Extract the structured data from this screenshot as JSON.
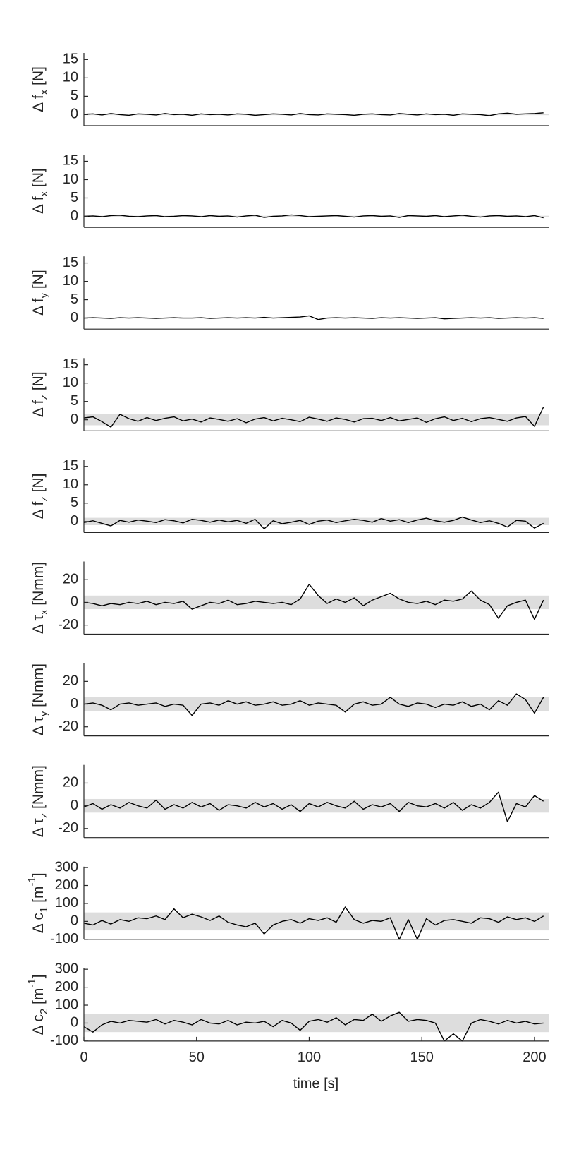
{
  "chart_data": {
    "type": "line",
    "xlabel": "time [s]",
    "xlim": [
      0,
      206.6
    ],
    "xticks": [
      0,
      50,
      100,
      150,
      200
    ],
    "line_color": "#000000",
    "band_color": "#dddddd",
    "x": [
      0,
      4,
      8,
      12,
      16,
      20,
      24,
      28,
      32,
      36,
      40,
      44,
      48,
      52,
      56,
      60,
      64,
      68,
      72,
      76,
      80,
      84,
      88,
      92,
      96,
      100,
      104,
      108,
      112,
      116,
      120,
      124,
      128,
      132,
      136,
      140,
      144,
      148,
      152,
      156,
      160,
      164,
      168,
      172,
      176,
      180,
      184,
      188,
      192,
      196,
      200,
      204
    ],
    "panels": [
      {
        "ylabel": [
          {
            "text": "Δ f"
          },
          {
            "text": "x",
            "shift": "sub"
          },
          {
            "text": " [N]"
          }
        ],
        "ylim": [
          -3,
          16.8
        ],
        "yticks": [
          0,
          5,
          10,
          15
        ],
        "band": 0.15,
        "values": [
          0.1,
          0.2,
          -0.1,
          0.3,
          0,
          -0.2,
          0.2,
          0.1,
          -0.1,
          0.3,
          0,
          0.1,
          -0.2,
          0.2,
          0,
          0.1,
          -0.1,
          0.2,
          0.1,
          -0.2,
          0,
          0.2,
          0.1,
          -0.1,
          0.3,
          0,
          -0.1,
          0.2,
          0.1,
          0,
          -0.2,
          0.1,
          0.2,
          0,
          -0.1,
          0.3,
          0.1,
          -0.1,
          0.2,
          0,
          0.1,
          -0.2,
          0.2,
          0.1,
          0,
          -0.3,
          0.2,
          0.4,
          0.1,
          0.2,
          0.3,
          0.5
        ]
      },
      {
        "ylabel": [
          {
            "text": "Δ f"
          },
          {
            "text": "x",
            "shift": "sub"
          },
          {
            "text": " [N]"
          }
        ],
        "ylim": [
          -3,
          16.8
        ],
        "yticks": [
          0,
          5,
          10,
          15
        ],
        "band": 0.15,
        "values": [
          0,
          0.1,
          -0.1,
          0.2,
          0.3,
          0,
          -0.1,
          0.1,
          0.2,
          -0.1,
          0,
          0.2,
          0.1,
          -0.1,
          0.2,
          0,
          0.1,
          -0.2,
          0.1,
          0.3,
          -0.3,
          0,
          0.1,
          0.4,
          0.2,
          -0.1,
          0,
          0.1,
          0.2,
          0,
          -0.2,
          0.1,
          0.2,
          0,
          0.1,
          -0.3,
          0.2,
          0.1,
          0,
          0.2,
          -0.1,
          0.1,
          0.3,
          0,
          -0.2,
          0.1,
          0.2,
          0,
          0.1,
          -0.1,
          0.2,
          -0.4
        ]
      },
      {
        "ylabel": [
          {
            "text": "Δ f"
          },
          {
            "text": "y",
            "shift": "sub"
          },
          {
            "text": " [N]"
          }
        ],
        "ylim": [
          -3,
          16.8
        ],
        "yticks": [
          0,
          5,
          10,
          15
        ],
        "band": 0.1,
        "values": [
          0,
          0.1,
          0,
          -0.1,
          0.1,
          0,
          0.1,
          0,
          -0.1,
          0,
          0.1,
          0,
          0,
          0.1,
          -0.1,
          0,
          0.1,
          0,
          0.1,
          0,
          0.2,
          0,
          0.1,
          0.2,
          0.3,
          0.6,
          -0.4,
          0,
          0.1,
          0,
          0.1,
          0,
          -0.1,
          0.1,
          0,
          0.1,
          0,
          -0.1,
          0,
          0.1,
          -0.2,
          -0.1,
          0,
          0.1,
          0,
          0.1,
          -0.1,
          0,
          0.1,
          0,
          0.1,
          -0.1
        ]
      },
      {
        "ylabel": [
          {
            "text": "Δ f"
          },
          {
            "text": "z",
            "shift": "sub"
          },
          {
            "text": " [N]"
          }
        ],
        "ylim": [
          -3,
          16.8
        ],
        "yticks": [
          0,
          5,
          10,
          15
        ],
        "band": 1.5,
        "values": [
          0.5,
          0.8,
          -0.5,
          -2,
          1.5,
          0.3,
          -0.4,
          0.6,
          -0.2,
          0.4,
          0.8,
          -0.3,
          0.2,
          -0.6,
          0.5,
          0.1,
          -0.4,
          0.3,
          -0.8,
          0.2,
          0.6,
          -0.3,
          0.4,
          0,
          -0.5,
          0.7,
          0.2,
          -0.4,
          0.5,
          0.1,
          -0.6,
          0.3,
          0.4,
          -0.2,
          0.6,
          -0.3,
          0.1,
          0.5,
          -0.7,
          0.3,
          0.8,
          -0.2,
          0.4,
          -0.5,
          0.3,
          0.6,
          0.1,
          -0.4,
          0.5,
          0.9,
          -1.8,
          3.5
        ]
      },
      {
        "ylabel": [
          {
            "text": "Δ f"
          },
          {
            "text": "z",
            "shift": "sub"
          },
          {
            "text": " [N]"
          }
        ],
        "ylim": [
          -3,
          16.8
        ],
        "yticks": [
          0,
          5,
          10,
          15
        ],
        "band": 1,
        "values": [
          -0.3,
          0.2,
          -0.5,
          -1.2,
          0.3,
          -0.2,
          0.4,
          0.1,
          -0.3,
          0.5,
          0.2,
          -0.4,
          0.6,
          0.3,
          -0.2,
          0.4,
          -0.1,
          0.3,
          -0.5,
          0.6,
          -2,
          0.2,
          -0.6,
          -0.2,
          0.3,
          -0.8,
          0.1,
          0.4,
          -0.3,
          0.2,
          0.6,
          0.3,
          -0.2,
          0.8,
          0.1,
          0.5,
          -0.3,
          0.4,
          0.9,
          0.2,
          -0.2,
          0.3,
          1.2,
          0.4,
          -0.3,
          0.2,
          -0.5,
          -1.5,
          0.3,
          0.1,
          -1.8,
          -0.5
        ]
      },
      {
        "ylabel": [
          {
            "text": "Δ τ"
          },
          {
            "text": "x",
            "shift": "sub"
          },
          {
            "text": " [Nmm]"
          }
        ],
        "ylim": [
          -28,
          36
        ],
        "yticks": [
          -20,
          0,
          20
        ],
        "band": 6,
        "values": [
          0,
          -1,
          -3,
          -1,
          -2,
          0,
          -1,
          1,
          -2,
          0,
          -1,
          1,
          -6,
          -3,
          0,
          -1,
          2,
          -2,
          -1,
          1,
          0,
          -1,
          0,
          -2,
          3,
          16,
          6,
          -1,
          3,
          0,
          4,
          -3,
          2,
          5,
          8,
          3,
          0,
          -1,
          1,
          -2,
          2,
          1,
          3,
          10,
          2,
          -2,
          -14,
          -3,
          0,
          2,
          -15,
          2
        ]
      },
      {
        "ylabel": [
          {
            "text": "Δ τ"
          },
          {
            "text": "y",
            "shift": "sub"
          },
          {
            "text": " [Nmm]"
          }
        ],
        "ylim": [
          -28,
          36
        ],
        "yticks": [
          -20,
          0,
          20
        ],
        "band": 6,
        "values": [
          0,
          1,
          -1,
          -5,
          0,
          1,
          -1,
          0,
          1,
          -2,
          0,
          -1,
          -10,
          0,
          1,
          -1,
          3,
          0,
          2,
          -1,
          0,
          2,
          -1,
          0,
          3,
          -1,
          1,
          0,
          -1,
          -7,
          0,
          2,
          -1,
          0,
          6,
          0,
          -2,
          1,
          0,
          -3,
          0,
          -1,
          2,
          -2,
          0,
          -5,
          3,
          -1,
          9,
          4,
          -8,
          6
        ]
      },
      {
        "ylabel": [
          {
            "text": "Δ τ"
          },
          {
            "text": "z",
            "shift": "sub"
          },
          {
            "text": " [Nmm]"
          }
        ],
        "ylim": [
          -28,
          36
        ],
        "yticks": [
          -20,
          0,
          20
        ],
        "band": 6,
        "values": [
          -1,
          2,
          -3,
          1,
          -2,
          3,
          0,
          -2,
          5,
          -3,
          1,
          -2,
          3,
          -1,
          2,
          -4,
          1,
          0,
          -2,
          3,
          -1,
          2,
          -3,
          1,
          -5,
          2,
          -1,
          3,
          0,
          -2,
          4,
          -3,
          1,
          -1,
          2,
          -5,
          3,
          0,
          -1,
          2,
          -2,
          3,
          -4,
          1,
          -2,
          3,
          12,
          -14,
          2,
          -1,
          9,
          4
        ]
      },
      {
        "ylabel": [
          {
            "text": "Δ c"
          },
          {
            "text": "1",
            "shift": "sub"
          },
          {
            "text": " [m"
          },
          {
            "text": "-1",
            "shift": "super"
          },
          {
            "text": "]"
          }
        ],
        "ylim": [
          -100,
          305
        ],
        "yticks": [
          -100,
          0,
          100,
          200,
          300
        ],
        "band": 50,
        "values": [
          -10,
          -20,
          5,
          -15,
          10,
          0,
          20,
          15,
          30,
          10,
          70,
          20,
          40,
          25,
          5,
          30,
          -5,
          -20,
          -30,
          -10,
          -70,
          -20,
          0,
          10,
          -10,
          15,
          5,
          20,
          -5,
          80,
          10,
          -10,
          5,
          0,
          20,
          -100,
          10,
          -100,
          15,
          -20,
          5,
          10,
          0,
          -10,
          20,
          15,
          -5,
          25,
          10,
          20,
          0,
          30
        ]
      },
      {
        "ylabel": [
          {
            "text": "Δ c"
          },
          {
            "text": "2",
            "shift": "sub"
          },
          {
            "text": " [m"
          },
          {
            "text": "-1",
            "shift": "super"
          },
          {
            "text": "]"
          }
        ],
        "ylim": [
          -100,
          305
        ],
        "yticks": [
          -100,
          0,
          100,
          200,
          300
        ],
        "band": 50,
        "values": [
          -20,
          -50,
          -10,
          10,
          0,
          15,
          10,
          5,
          20,
          -5,
          15,
          5,
          -10,
          20,
          0,
          -5,
          15,
          -10,
          5,
          0,
          10,
          -20,
          15,
          0,
          -40,
          10,
          20,
          5,
          30,
          -10,
          20,
          15,
          50,
          10,
          40,
          60,
          10,
          20,
          15,
          0,
          -100,
          -60,
          -100,
          0,
          20,
          10,
          -5,
          15,
          0,
          10,
          -5,
          0
        ]
      }
    ]
  }
}
